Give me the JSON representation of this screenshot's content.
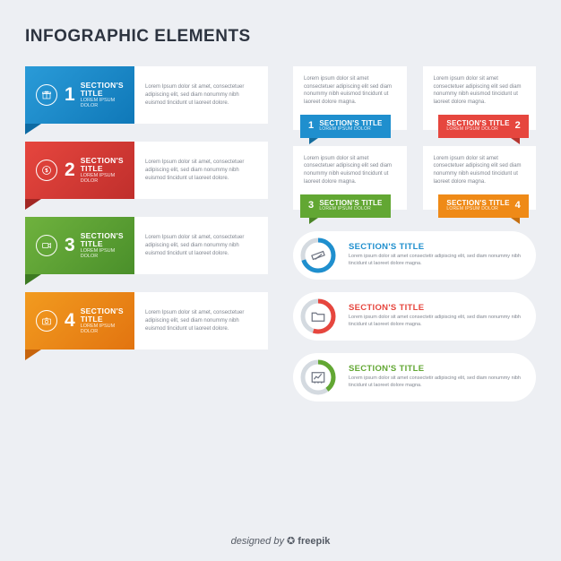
{
  "title": "INFOGRAPHIC ELEMENTS",
  "lorem2": "Lorem Ipsum dolor sit amet, consectetuer adipiscing elit, sed diam nonummy nibh euismod tincidunt ut laoreet dolore.",
  "lorem3": "Lorem ipsum dolor sit amet consectetuer adipiscing elit sed diam nonummy nibh euismod tincidunt ut laoreet dolore magna.",
  "left": [
    {
      "num": "1",
      "title": "SECTION'S TITLE",
      "sub": "LOREM IPSUM DOLOR",
      "color1": "#2a9bd8",
      "color2": "#0f78b8",
      "tail": "#0d6aa3",
      "icon": "gift"
    },
    {
      "num": "2",
      "title": "SECTION'S TITLE",
      "sub": "LOREM IPSUM DOLOR",
      "color1": "#e6463e",
      "color2": "#c02f2c",
      "tail": "#a22724",
      "icon": "dollar"
    },
    {
      "num": "3",
      "title": "SECTION'S TITLE",
      "sub": "LOREM IPSUM DOLOR",
      "color1": "#6fb23e",
      "color2": "#4a8f2a",
      "tail": "#3d7a22",
      "icon": "video"
    },
    {
      "num": "4",
      "title": "SECTION'S TITLE",
      "sub": "LOREM IPSUM DOLOR",
      "color1": "#f29b1f",
      "color2": "#e27410",
      "tail": "#c7640c",
      "icon": "camera"
    }
  ],
  "cards": [
    {
      "num": "1",
      "title": "SECTION'S TITLE",
      "sub": "LOREM IPSUM DOLOR",
      "color": "#1f8fce",
      "tail": "#156d9e",
      "side": "left"
    },
    {
      "num": "2",
      "title": "SECTION'S TITLE",
      "sub": "LOREM IPSUM DOLOR",
      "color": "#e6463e",
      "tail": "#b63530",
      "side": "right"
    },
    {
      "num": "3",
      "title": "SECTION'S TITLE",
      "sub": "LOREM IPSUM DOLOR",
      "color": "#62a733",
      "tail": "#4b8527",
      "side": "left"
    },
    {
      "num": "4",
      "title": "SECTION'S TITLE",
      "sub": "LOREM IPSUM DOLOR",
      "color": "#ef8a17",
      "tail": "#c56f10",
      "side": "right"
    }
  ],
  "pills": [
    {
      "title": "SECTION'S TITLE",
      "titleColor": "#1f8fce",
      "ringColor": "#1f8fce",
      "ringBg": "#d4dae0",
      "pct": 70,
      "icon": "ruler"
    },
    {
      "title": "SECTION'S TITLE",
      "titleColor": "#e6463e",
      "ringColor": "#e6463e",
      "ringBg": "#d4dae0",
      "pct": 55,
      "icon": "folder"
    },
    {
      "title": "SECTION'S TITLE",
      "titleColor": "#62a733",
      "ringColor": "#62a733",
      "ringBg": "#d4dae0",
      "pct": 40,
      "icon": "chart"
    }
  ],
  "pillBody": "Lorem ipsum dolor sit amet consectetir adipiscing elit, sed diam nonummy nibh tincidunt ut laoreet dolore magna.",
  "footer": {
    "by": "designed by",
    "brand": "freepik"
  }
}
